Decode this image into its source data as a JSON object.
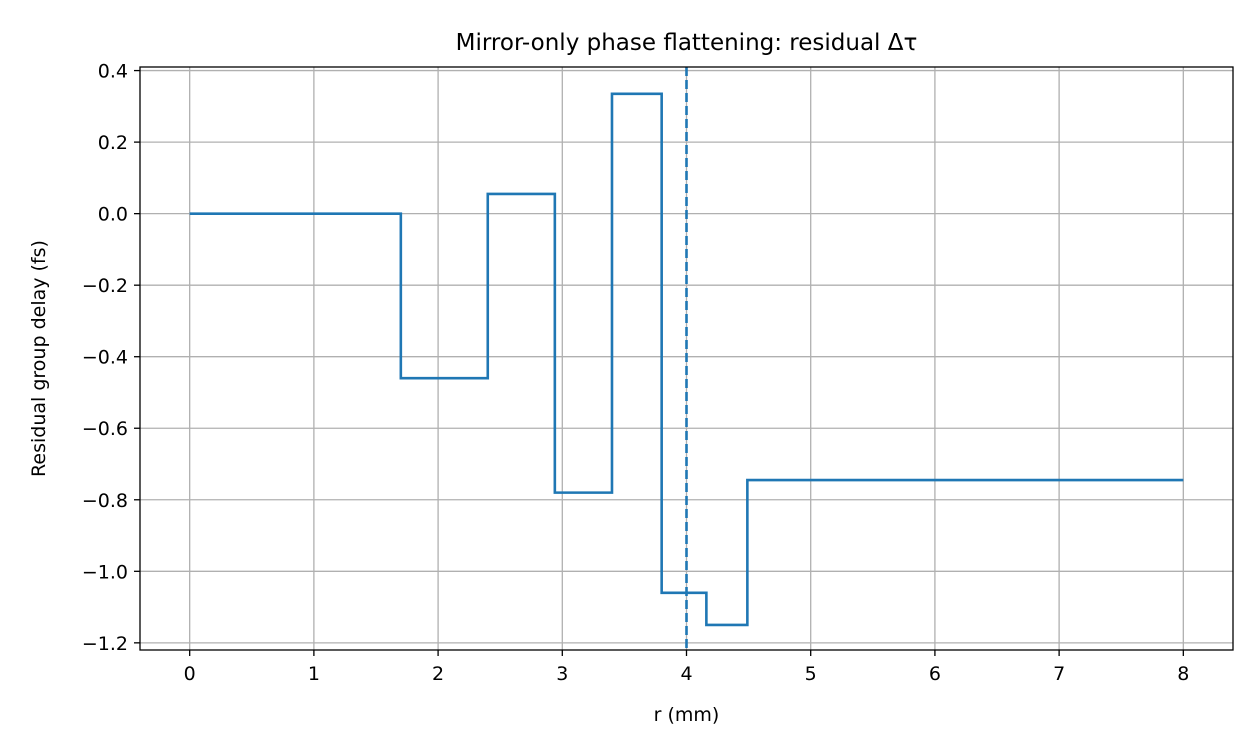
{
  "chart_data": {
    "type": "line",
    "title": "Mirror-only phase flattening: residual Δτ",
    "xlabel": "r (mm)",
    "ylabel": "Residual group delay (fs)",
    "xlim": [
      -0.4,
      8.4
    ],
    "ylim": [
      -1.22,
      0.41
    ],
    "xticks": [
      0,
      1,
      2,
      3,
      4,
      5,
      6,
      7,
      8
    ],
    "xtick_labels": [
      "0",
      "1",
      "2",
      "3",
      "4",
      "5",
      "6",
      "7",
      "8"
    ],
    "yticks": [
      0.4,
      0.2,
      0.0,
      -0.2,
      -0.4,
      -0.6,
      -0.8,
      -1.0,
      -1.2
    ],
    "ytick_labels": [
      "0.4",
      "0.2",
      "0.0",
      "−0.2",
      "−0.4",
      "−0.6",
      "−0.8",
      "−1.0",
      "−1.2"
    ],
    "grid": true,
    "series": [
      {
        "color": "#1f77b4",
        "style": "step",
        "x": [
          0,
          1.7,
          1.7,
          2.4,
          2.4,
          2.94,
          2.94,
          3.4,
          3.4,
          3.8,
          3.8,
          4.16,
          4.16,
          4.49,
          4.49,
          8.0
        ],
        "y": [
          0.0,
          0.0,
          -0.46,
          -0.46,
          0.055,
          0.055,
          -0.78,
          -0.78,
          0.335,
          0.335,
          -1.06,
          -1.06,
          -1.15,
          -1.15,
          -0.745,
          -0.745
        ]
      }
    ],
    "vlines": [
      {
        "x": 4.0,
        "color": "#1f77b4",
        "style": "dashed"
      }
    ]
  }
}
